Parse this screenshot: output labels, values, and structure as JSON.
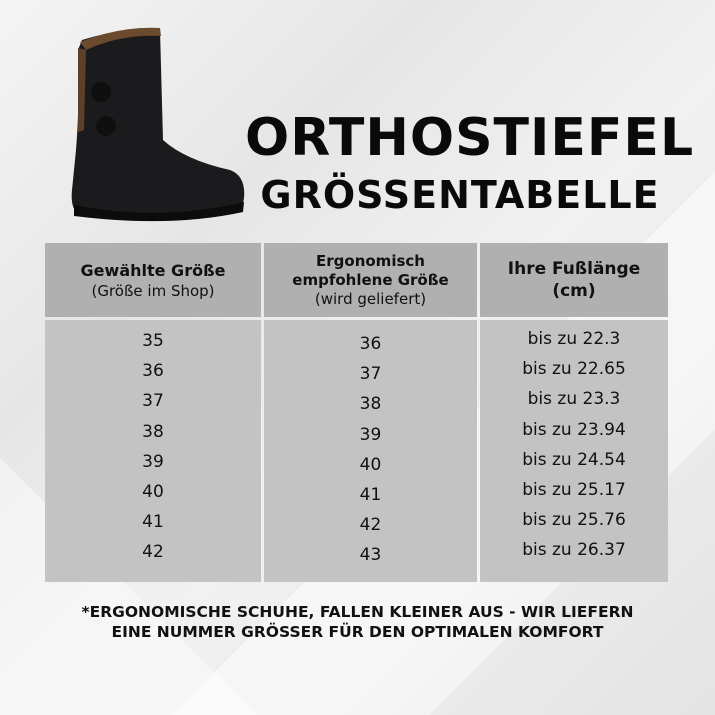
{
  "title": {
    "line1": "ORTHOSTIEFEL",
    "line2": "GRÖSSENTABELLE"
  },
  "image": {
    "icon": "boot-image"
  },
  "table": {
    "headers": [
      {
        "bold": "Gewählte Größe",
        "sub": "(Größe im Shop)"
      },
      {
        "bold": "Ergonomisch empfohlene Größe",
        "sub": "(wird geliefert)"
      },
      {
        "bold": "Ihre Fußlänge",
        "sub": "(cm)"
      }
    ],
    "rows": [
      [
        "35",
        "36",
        "bis zu 22.3"
      ],
      [
        "36",
        "37",
        "bis zu 22.65"
      ],
      [
        "37",
        "38",
        "bis zu 23.3"
      ],
      [
        "38",
        "39",
        "bis zu 23.94"
      ],
      [
        "39",
        "40",
        "bis zu 24.54"
      ],
      [
        "40",
        "41",
        "bis zu 25.17"
      ],
      [
        "41",
        "42",
        "bis zu 25.76"
      ],
      [
        "42",
        "43",
        "bis zu 26.37"
      ]
    ]
  },
  "note": {
    "line1": "*ERGONOMISCHE SCHUHE, FALLEN KLEINER AUS - WIR LIEFERN",
    "line2": "EINE NUMMER GRÖSSER FÜR DEN OPTIMALEN KOMFORT"
  },
  "colors": {
    "header_bg": "#b0b0b0",
    "body_bg": "#c3c3c3"
  }
}
